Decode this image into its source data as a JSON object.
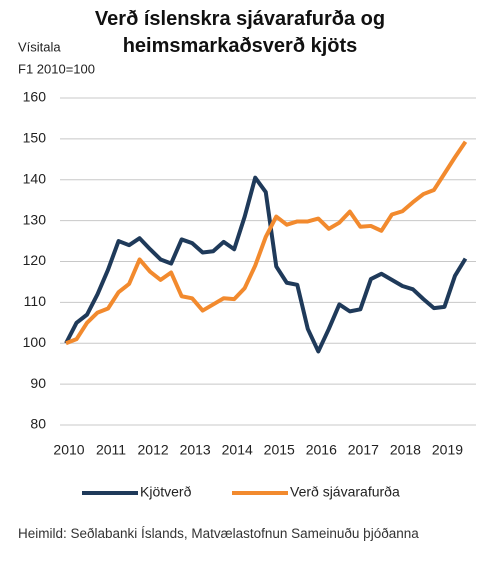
{
  "chart_data": {
    "type": "line",
    "title": "Verð íslenskra sjávarafurða og heimsmarkaðsverð kjöts",
    "y_label": [
      "Vísitala",
      "F1 2010=100"
    ],
    "source": "Heimild: Seðlabanki Íslands, Matvælastofnun Sameinuðu þjóðanna",
    "x": [
      2010,
      2010.25,
      2010.5,
      2010.75,
      2011,
      2011.25,
      2011.5,
      2011.75,
      2012,
      2012.25,
      2012.5,
      2012.75,
      2013,
      2013.25,
      2013.5,
      2013.75,
      2014,
      2014.25,
      2014.5,
      2014.75,
      2015,
      2015.25,
      2015.5,
      2015.75,
      2016,
      2016.25,
      2016.5,
      2016.75,
      2017,
      2017.25,
      2017.5,
      2017.75,
      2018,
      2018.25,
      2018.5,
      2018.75,
      2019,
      2019.25,
      2019.5
    ],
    "series": [
      {
        "name": "Kjötverð",
        "color": "#1f3a5a",
        "values": [
          100,
          105,
          107,
          112,
          118,
          125,
          124,
          125.7,
          123,
          120.5,
          119.5,
          125.4,
          124.5,
          122.2,
          122.5,
          124.8,
          123,
          131,
          140.5,
          137,
          118.8,
          114.8,
          114.3,
          103.5,
          98,
          103.5,
          109.5,
          107.8,
          108.3,
          115.7,
          117,
          115.5,
          114,
          113.2,
          110.8,
          108.6,
          108.9,
          116.5,
          120.7
        ]
      },
      {
        "name": "Verð sjávarafurða",
        "color": "#f28a2e",
        "values": [
          100,
          101,
          105,
          107.5,
          108.5,
          112.5,
          114.5,
          120.5,
          117.5,
          115.5,
          117.3,
          111.5,
          111,
          108,
          109.5,
          111,
          110.8,
          113.5,
          119,
          126,
          131,
          129,
          129.8,
          129.8,
          130.5,
          128,
          129.5,
          132.2,
          128.5,
          128.7,
          127.5,
          131.5,
          132.3,
          134.5,
          136.5,
          137.5,
          141.5,
          145.5,
          149.3
        ]
      }
    ],
    "xlim": [
      2010,
      2019.75
    ],
    "xticks": [
      2010,
      2011,
      2012,
      2013,
      2014,
      2015,
      2016,
      2017,
      2018,
      2019
    ],
    "ylim": [
      80,
      160
    ],
    "yticks": [
      80,
      90,
      100,
      110,
      120,
      130,
      140,
      150,
      160
    ],
    "grid": true,
    "legend": "bottom"
  }
}
